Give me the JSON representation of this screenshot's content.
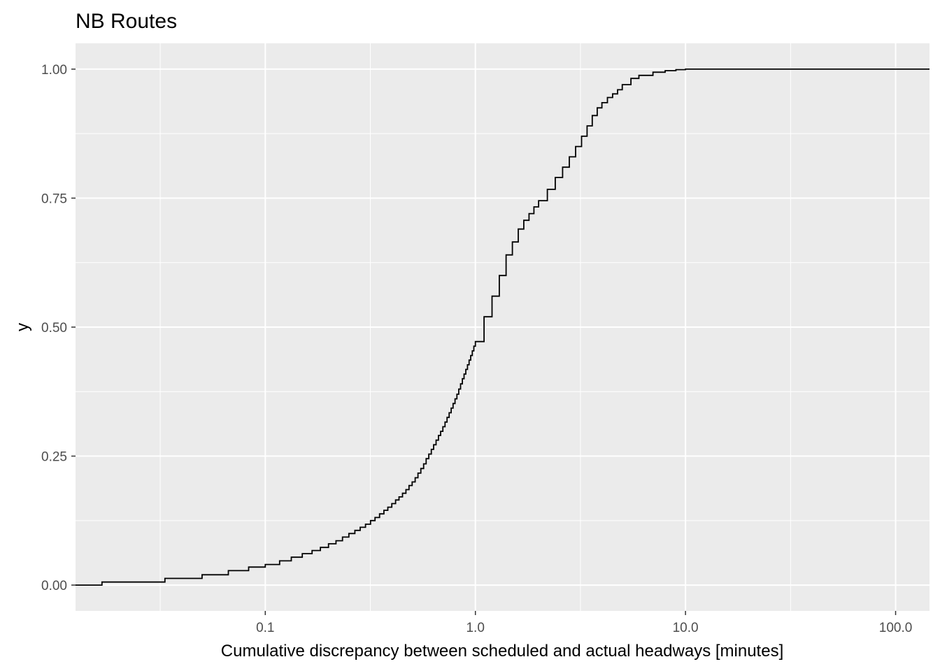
{
  "chart_data": {
    "type": "line",
    "title": "NB Routes",
    "xlabel": "Cumulative discrepancy between scheduled and actual headways [minutes]",
    "ylabel": "y",
    "x_scale": "log10",
    "xlim": [
      0.0125,
      145
    ],
    "ylim": [
      -0.05,
      1.05
    ],
    "x_ticks": [
      0.1,
      1.0,
      10.0,
      100.0
    ],
    "x_tick_labels": [
      "0.1",
      "1.0",
      "10.0",
      "100.0"
    ],
    "y_ticks": [
      0,
      0.25,
      0.5,
      0.75,
      1.0
    ],
    "y_tick_labels": [
      "0.00",
      "0.25",
      "0.50",
      "0.75",
      "1.00"
    ],
    "grid": true,
    "legend": "none",
    "colors": {
      "panel": "#ebebeb",
      "grid": "#ffffff",
      "line": "#000000"
    },
    "series": [
      {
        "step": true,
        "x": [
          0.0125,
          0.0167,
          0.0333,
          0.05,
          0.0667,
          0.0833,
          0.1,
          0.117,
          0.133,
          0.15,
          0.167,
          0.183,
          0.2,
          0.217,
          0.233,
          0.25,
          0.267,
          0.283,
          0.3,
          0.317,
          0.333,
          0.35,
          0.367,
          0.383,
          0.4,
          0.417,
          0.433,
          0.45,
          0.467,
          0.483,
          0.5,
          0.517,
          0.533,
          0.55,
          0.567,
          0.583,
          0.6,
          0.617,
          0.633,
          0.65,
          0.667,
          0.683,
          0.7,
          0.717,
          0.733,
          0.75,
          0.767,
          0.783,
          0.8,
          0.817,
          0.833,
          0.85,
          0.867,
          0.883,
          0.9,
          0.917,
          0.933,
          0.95,
          0.967,
          0.983,
          1.0,
          1.1,
          1.2,
          1.3,
          1.4,
          1.5,
          1.6,
          1.7,
          1.8,
          1.9,
          2.0,
          2.2,
          2.4,
          2.6,
          2.8,
          3.0,
          3.2,
          3.4,
          3.6,
          3.8,
          4.0,
          4.25,
          4.5,
          4.75,
          5.0,
          5.5,
          6.0,
          7.0,
          8.0,
          9.0,
          10.0,
          12.0,
          145
        ],
        "y": [
          0.0,
          0.006,
          0.013,
          0.02,
          0.028,
          0.035,
          0.04,
          0.047,
          0.054,
          0.061,
          0.067,
          0.073,
          0.08,
          0.086,
          0.093,
          0.1,
          0.106,
          0.112,
          0.118,
          0.125,
          0.131,
          0.138,
          0.145,
          0.151,
          0.158,
          0.165,
          0.171,
          0.178,
          0.185,
          0.193,
          0.2,
          0.208,
          0.217,
          0.226,
          0.235,
          0.245,
          0.254,
          0.263,
          0.272,
          0.281,
          0.29,
          0.298,
          0.307,
          0.316,
          0.325,
          0.334,
          0.343,
          0.352,
          0.361,
          0.37,
          0.38,
          0.39,
          0.4,
          0.409,
          0.418,
          0.427,
          0.436,
          0.445,
          0.454,
          0.463,
          0.472,
          0.52,
          0.56,
          0.6,
          0.64,
          0.665,
          0.69,
          0.707,
          0.72,
          0.733,
          0.745,
          0.767,
          0.79,
          0.81,
          0.83,
          0.85,
          0.87,
          0.89,
          0.91,
          0.925,
          0.935,
          0.945,
          0.952,
          0.96,
          0.97,
          0.982,
          0.988,
          0.994,
          0.997,
          0.999,
          1.0,
          1.0,
          1.0
        ]
      }
    ]
  }
}
